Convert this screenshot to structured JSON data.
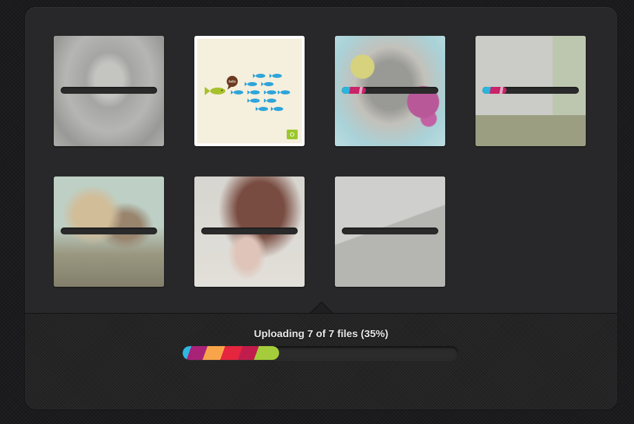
{
  "upload": {
    "status_text": "Uploading 7 of 7 files (35%)",
    "overall_progress": 0.35
  },
  "tiles": [
    {
      "name": "photo-hooded-girl",
      "progress": 0
    },
    {
      "name": "photo-fish-hello",
      "progress": null,
      "fish_speech": "hello"
    },
    {
      "name": "photo-illustration-face",
      "progress": 0.25
    },
    {
      "name": "photo-street-sign",
      "progress": 0.25
    },
    {
      "name": "photo-couple",
      "progress": 0
    },
    {
      "name": "photo-flying-hair",
      "progress": 0
    },
    {
      "name": "photo-road-bicycle",
      "progress": 0
    }
  ],
  "colors": {
    "stripe_blue": "#2eb8e0",
    "stripe_magenta": "#a92278",
    "stripe_orange": "#f7a44a",
    "stripe_red": "#e6253f",
    "stripe_green": "#a4cc3b",
    "camera_badge": "#9bc82a"
  }
}
